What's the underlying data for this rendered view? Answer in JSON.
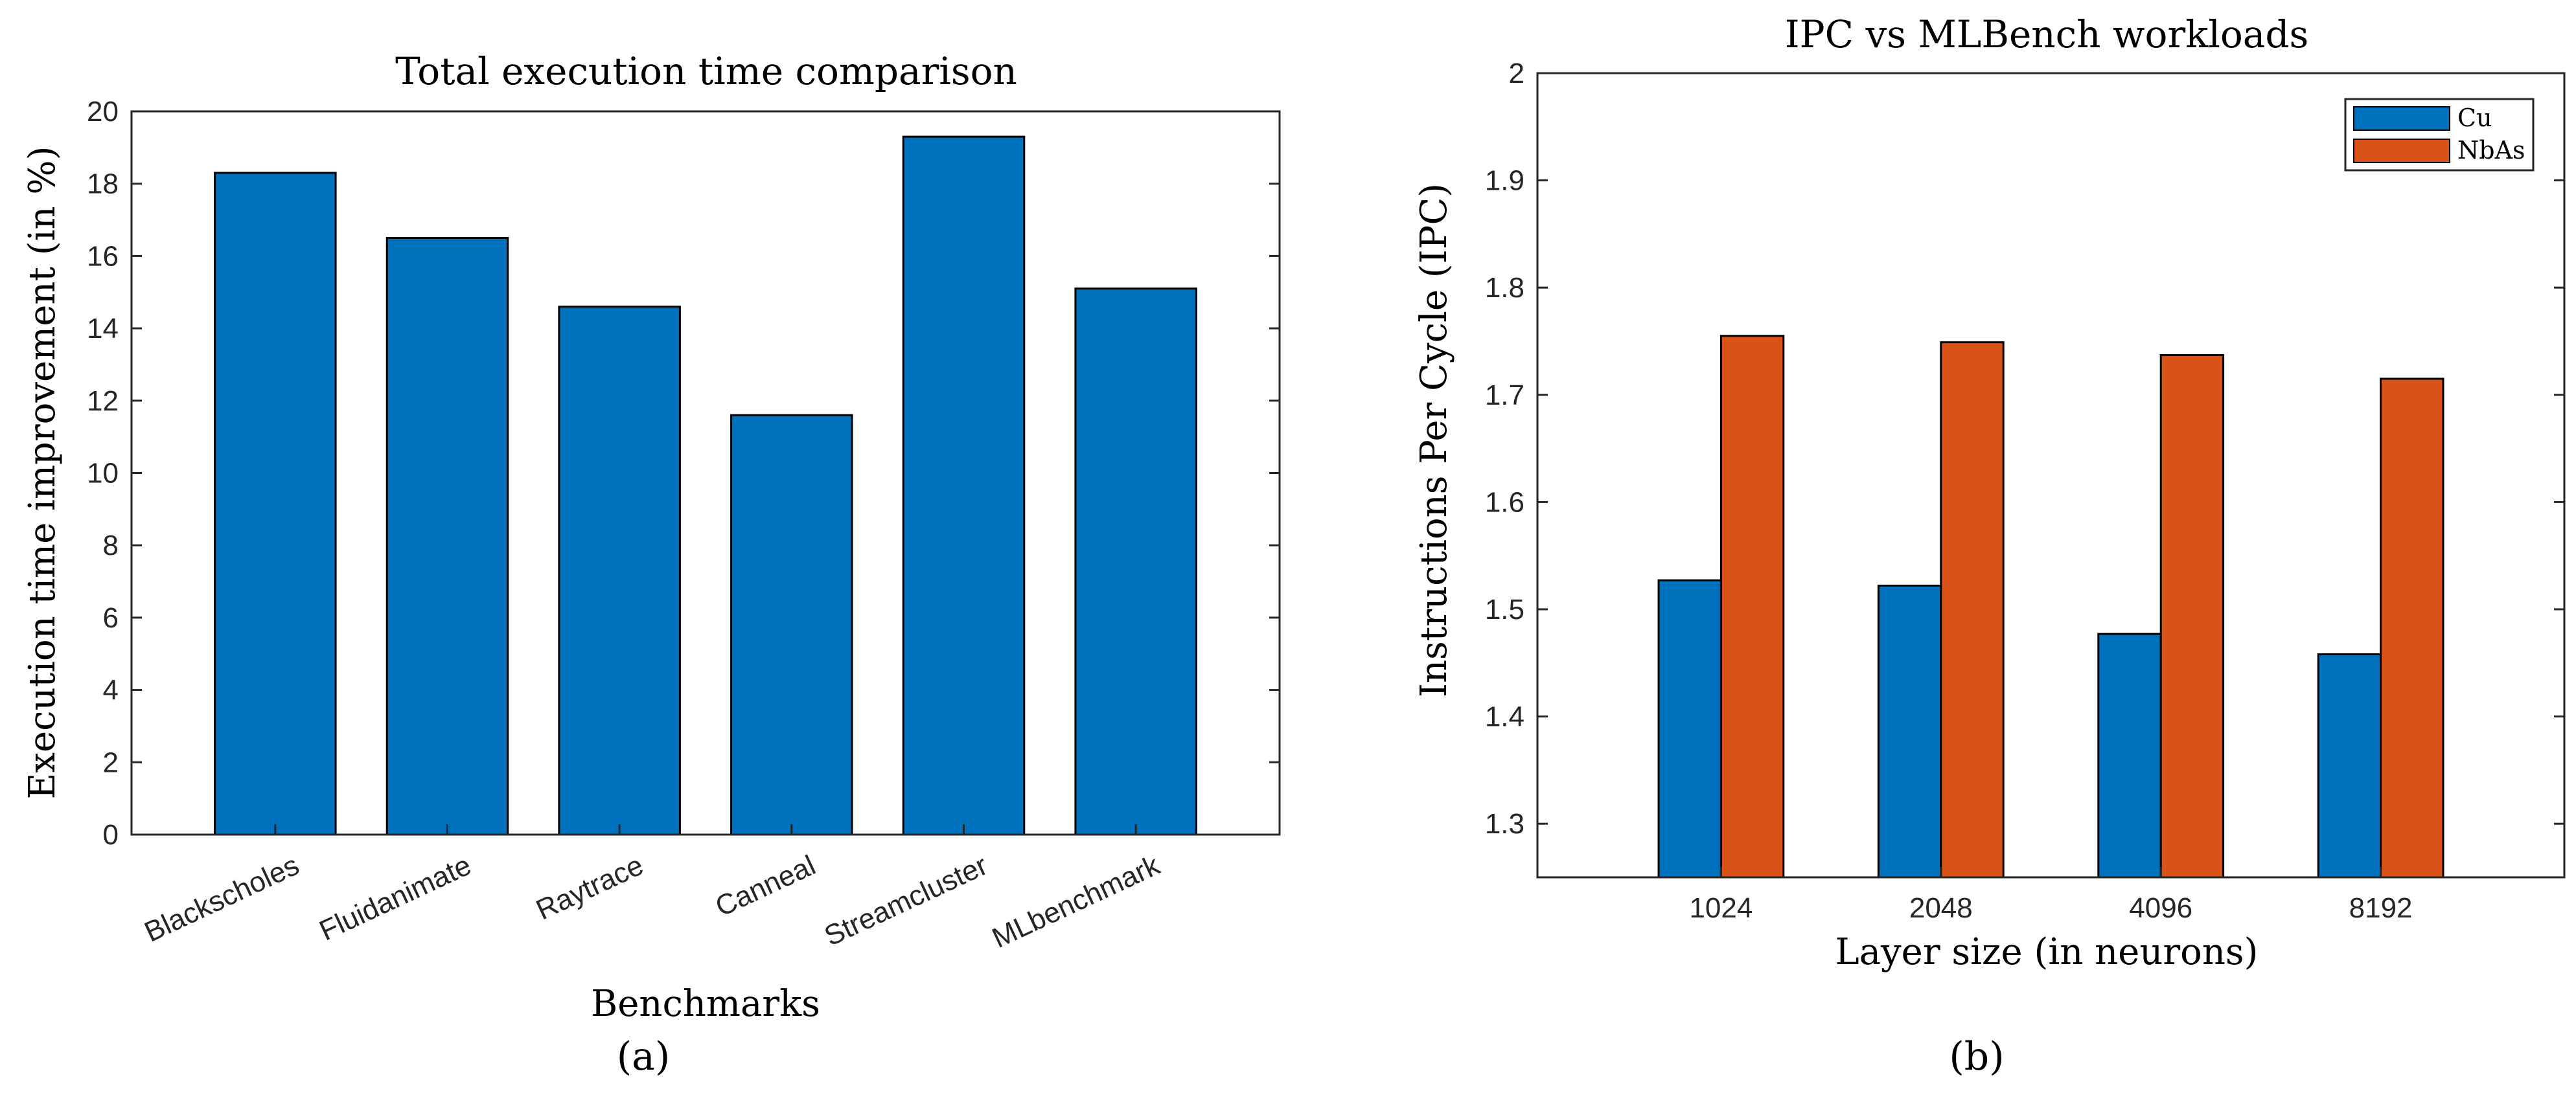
{
  "chart_data": [
    {
      "type": "bar",
      "title": "Total execution time comparison",
      "xlabel": "Benchmarks",
      "ylabel": "Execution time improvement (in %)",
      "panel_label": "(a)",
      "categories": [
        "Blackscholes",
        "Fluidanimate",
        "Raytrace",
        "Canneal",
        "Streamcluster",
        "MLbenchmark"
      ],
      "values": [
        18.3,
        16.5,
        14.6,
        11.6,
        19.3,
        15.1
      ],
      "ylim": [
        0,
        20
      ],
      "yticks": [
        0,
        2,
        4,
        6,
        8,
        10,
        12,
        14,
        16,
        18,
        20
      ],
      "grid": false,
      "color": "#0072BD"
    },
    {
      "type": "bar",
      "title": "IPC vs MLBench workloads",
      "xlabel": "Layer size (in neurons)",
      "ylabel": "Instructions Per Cycle (IPC)",
      "panel_label": "(b)",
      "categories": [
        "1024",
        "2048",
        "4096",
        "8192"
      ],
      "series": [
        {
          "name": "Cu",
          "values": [
            1.527,
            1.522,
            1.477,
            1.458
          ],
          "color": "#0072BD"
        },
        {
          "name": "NbAs",
          "values": [
            1.755,
            1.749,
            1.737,
            1.715
          ],
          "color": "#D95319"
        }
      ],
      "ylim": [
        1.25,
        2
      ],
      "yticks": [
        "1.3",
        "1.4",
        "1.5",
        "1.6",
        "1.7",
        "1.8",
        "1.9",
        "2"
      ],
      "legend_position": "top-right",
      "grid": false
    }
  ]
}
